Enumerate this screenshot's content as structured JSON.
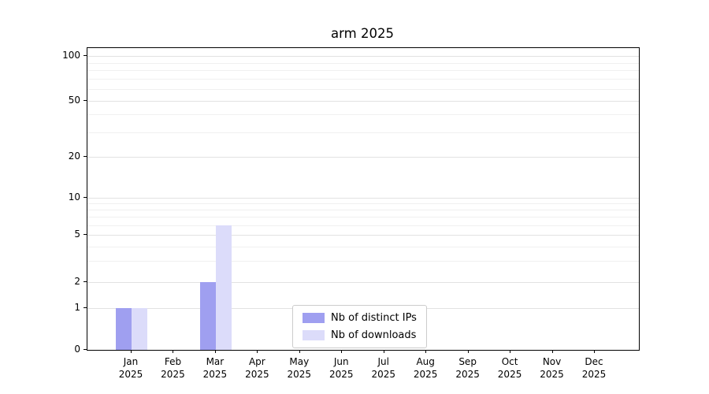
{
  "chart_data": {
    "type": "bar",
    "title": "arm 2025",
    "x_tick_months": [
      "Jan",
      "Feb",
      "Mar",
      "Apr",
      "May",
      "Jun",
      "Jul",
      "Aug",
      "Sep",
      "Oct",
      "Nov",
      "Dec"
    ],
    "x_tick_year": "2025",
    "series": [
      {
        "name": "Nb of distinct IPs",
        "color": "#9f9ff0",
        "values": [
          1,
          0,
          2,
          0,
          0,
          0,
          0,
          0,
          0,
          0,
          0,
          0
        ]
      },
      {
        "name": "Nb of downloads",
        "color": "#dcdcfa",
        "values": [
          1,
          0,
          6,
          0,
          0,
          0,
          0,
          0,
          0,
          0,
          0,
          0
        ]
      }
    ],
    "y_ticks": [
      0,
      1,
      2,
      5,
      10,
      20,
      50,
      100
    ],
    "y_minor_gridlines": [
      3,
      4,
      6,
      7,
      8,
      9,
      30,
      40,
      60,
      70,
      80,
      90
    ],
    "yscale": "log (linear below 1)",
    "ylim": [
      0,
      110
    ],
    "grid": true,
    "legend_position": "lower center"
  }
}
